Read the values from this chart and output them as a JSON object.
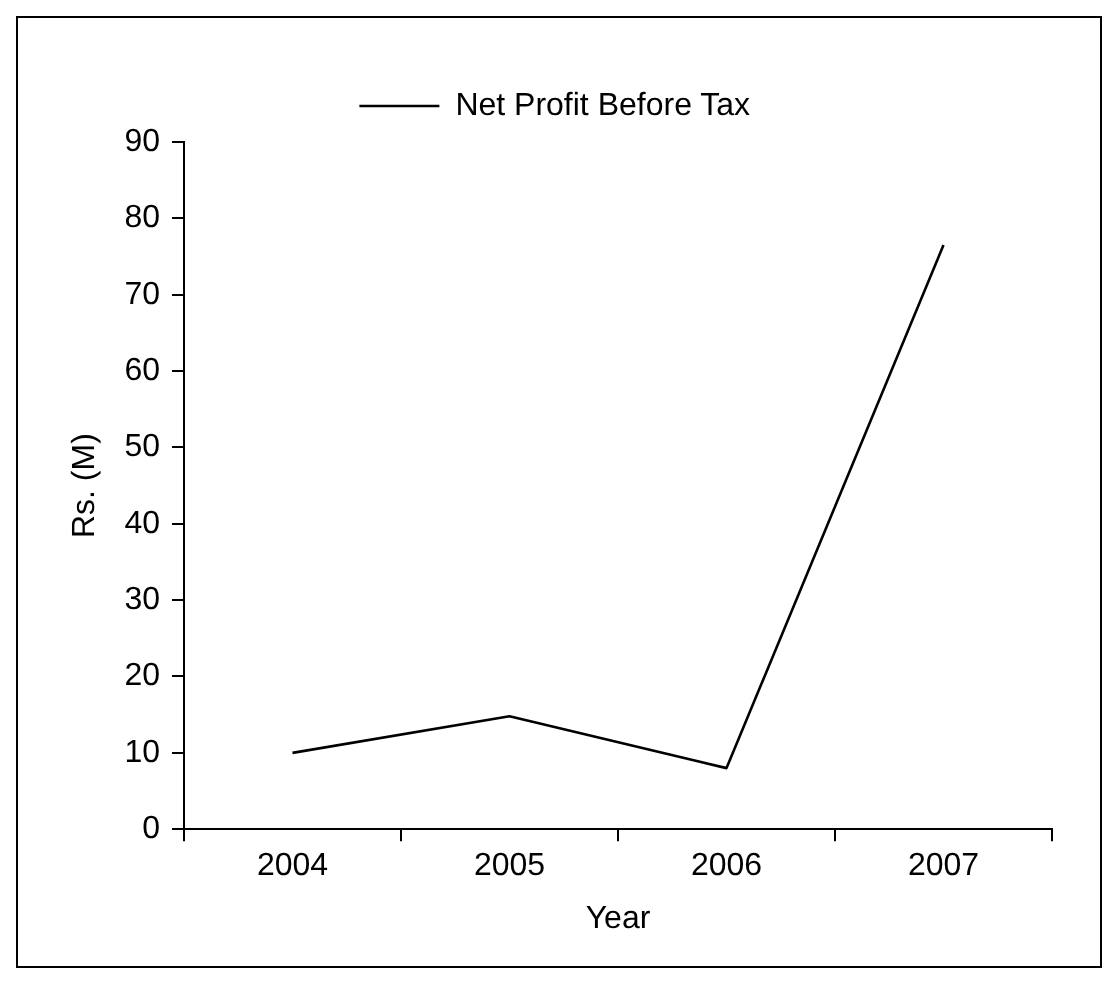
{
  "chart_data": {
    "type": "line",
    "categories": [
      "2004",
      "2005",
      "2006",
      "2007"
    ],
    "series": [
      {
        "name": "Net Profit Before Tax",
        "color": "#000000",
        "values": [
          10,
          14.8,
          8,
          76.5
        ]
      }
    ],
    "xlabel": "Year",
    "ylabel": "Rs. (M)",
    "ylim": [
      0,
      90
    ],
    "yticks": [
      0,
      10,
      20,
      30,
      40,
      50,
      60,
      70,
      80,
      90
    ],
    "grid": false,
    "legend": "top",
    "marker": "none"
  }
}
